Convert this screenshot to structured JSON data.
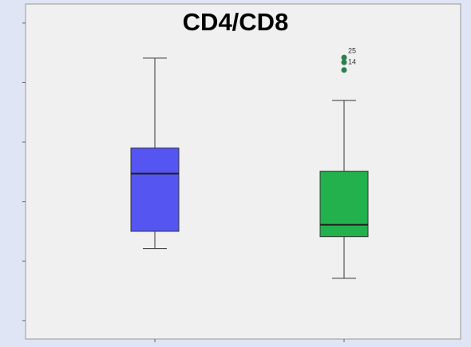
{
  "chart_data": {
    "type": "box",
    "title": "CD4/CD8",
    "categories": [
      null,
      null
    ],
    "series": [
      {
        "color": "#5555f2",
        "min": 1.21,
        "q1": 1.5,
        "median": 2.47,
        "q3": 2.9,
        "max": 4.41,
        "outliers": [],
        "outlier_labels": []
      },
      {
        "color": "#22b14c",
        "min": 0.71,
        "q1": 1.41,
        "median": 1.61,
        "q3": 2.51,
        "max": 3.7,
        "outliers": [
          4.42,
          4.34,
          4.21
        ],
        "outlier_labels": [
          "25",
          "14",
          null
        ]
      }
    ],
    "ylim": [
      -0.31,
      5.32
    ],
    "yticks": [
      0,
      1,
      2,
      3,
      4,
      5
    ]
  }
}
